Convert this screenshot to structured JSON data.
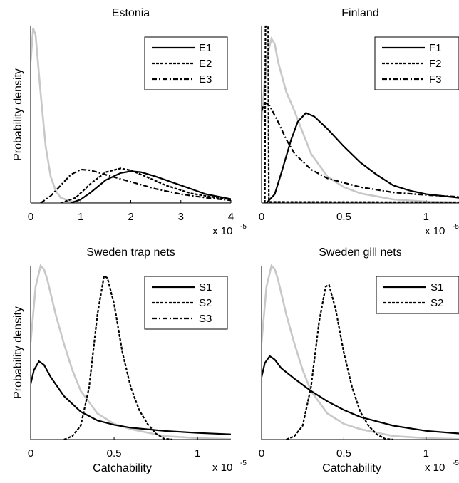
{
  "chart_data": [
    {
      "type": "line",
      "title": "Estonia",
      "xlabel": "",
      "ylabel": "Probability density",
      "xlim": [
        0,
        4
      ],
      "xticks": [
        "0",
        "1",
        "2",
        "3",
        "4"
      ],
      "xtick_values": [
        0,
        1,
        2,
        3,
        4
      ],
      "x_multiplier": {
        "base": "x 10",
        "exp": "-5"
      },
      "ylim": [
        0,
        1
      ],
      "legend": {
        "position": "top-right"
      },
      "prior": {
        "color": "#c8c8c8",
        "points": [
          [
            0,
            0.8
          ],
          [
            0.05,
            0.99
          ],
          [
            0.1,
            0.95
          ],
          [
            0.2,
            0.62
          ],
          [
            0.3,
            0.32
          ],
          [
            0.4,
            0.15
          ],
          [
            0.5,
            0.07
          ],
          [
            0.6,
            0.03
          ],
          [
            0.8,
            0.01
          ],
          [
            1.0,
            0.003
          ],
          [
            1.5,
            0.001
          ],
          [
            4,
            0
          ]
        ]
      },
      "series": [
        {
          "name": "E1",
          "dash": "solid",
          "points": [
            [
              0.8,
              0
            ],
            [
              1.0,
              0.02
            ],
            [
              1.2,
              0.06
            ],
            [
              1.5,
              0.13
            ],
            [
              1.8,
              0.17
            ],
            [
              2.0,
              0.18
            ],
            [
              2.2,
              0.175
            ],
            [
              2.5,
              0.15
            ],
            [
              3.0,
              0.1
            ],
            [
              3.5,
              0.05
            ],
            [
              4.0,
              0.022
            ]
          ]
        },
        {
          "name": "E2",
          "dash": "dashed",
          "points": [
            [
              0.6,
              0
            ],
            [
              0.9,
              0.03
            ],
            [
              1.2,
              0.11
            ],
            [
              1.5,
              0.175
            ],
            [
              1.8,
              0.196
            ],
            [
              2.0,
              0.185
            ],
            [
              2.3,
              0.15
            ],
            [
              2.7,
              0.1
            ],
            [
              3.2,
              0.055
            ],
            [
              3.6,
              0.035
            ],
            [
              4.0,
              0.02
            ]
          ]
        },
        {
          "name": "E3",
          "dash": "dashdot",
          "points": [
            [
              0.2,
              0
            ],
            [
              0.4,
              0.04
            ],
            [
              0.6,
              0.1
            ],
            [
              0.8,
              0.16
            ],
            [
              1.0,
              0.19
            ],
            [
              1.2,
              0.185
            ],
            [
              1.5,
              0.16
            ],
            [
              2.0,
              0.12
            ],
            [
              2.5,
              0.08
            ],
            [
              3.0,
              0.05
            ],
            [
              3.5,
              0.03
            ],
            [
              4.0,
              0.015
            ]
          ]
        }
      ]
    },
    {
      "type": "line",
      "title": "Finland",
      "xlabel": "",
      "ylabel": "",
      "xlim": [
        0,
        1.2
      ],
      "xticks": [
        "0",
        "0.5",
        "1"
      ],
      "xtick_values": [
        0,
        0.5,
        1
      ],
      "x_multiplier": {
        "base": "x 10",
        "exp": "-5"
      },
      "ylim": [
        0,
        1
      ],
      "legend": {
        "position": "top-right"
      },
      "prior": {
        "color": "#c8c8c8",
        "points": [
          [
            0,
            0.46
          ],
          [
            0.03,
            0.82
          ],
          [
            0.06,
            0.93
          ],
          [
            0.08,
            0.9
          ],
          [
            0.1,
            0.8
          ],
          [
            0.15,
            0.63
          ],
          [
            0.2,
            0.52
          ],
          [
            0.25,
            0.4
          ],
          [
            0.3,
            0.28
          ],
          [
            0.4,
            0.15
          ],
          [
            0.5,
            0.09
          ],
          [
            0.6,
            0.055
          ],
          [
            0.8,
            0.02
          ],
          [
            1.0,
            0.008
          ],
          [
            1.2,
            0.003
          ]
        ]
      },
      "series": [
        {
          "name": "F1",
          "dash": "solid",
          "points": [
            [
              0.03,
              0
            ],
            [
              0.08,
              0.05
            ],
            [
              0.12,
              0.17
            ],
            [
              0.18,
              0.36
            ],
            [
              0.22,
              0.46
            ],
            [
              0.27,
              0.51
            ],
            [
              0.32,
              0.49
            ],
            [
              0.4,
              0.42
            ],
            [
              0.5,
              0.32
            ],
            [
              0.6,
              0.23
            ],
            [
              0.7,
              0.16
            ],
            [
              0.8,
              0.1
            ],
            [
              0.9,
              0.07
            ],
            [
              1.0,
              0.05
            ],
            [
              1.1,
              0.04
            ],
            [
              1.2,
              0.03
            ]
          ]
        },
        {
          "name": "F2",
          "dash": "dashed",
          "points": [
            [
              0.02,
              0
            ],
            [
              0.024,
              1
            ],
            [
              0.04,
              1
            ],
            [
              0.044,
              0.01
            ],
            [
              0.05,
              0.006
            ],
            [
              0.06,
              0.006
            ],
            [
              1.2,
              0.004
            ]
          ]
        },
        {
          "name": "F3",
          "dash": "dashdot",
          "points": [
            [
              0,
              0.52
            ],
            [
              0.02,
              0.57
            ],
            [
              0.05,
              0.55
            ],
            [
              0.1,
              0.46
            ],
            [
              0.15,
              0.36
            ],
            [
              0.2,
              0.28
            ],
            [
              0.3,
              0.19
            ],
            [
              0.4,
              0.14
            ],
            [
              0.6,
              0.09
            ],
            [
              0.8,
              0.06
            ],
            [
              1.0,
              0.045
            ],
            [
              1.2,
              0.035
            ]
          ]
        }
      ]
    },
    {
      "type": "line",
      "title": "Sweden trap nets",
      "xlabel": "Catchability",
      "ylabel": "Probability density",
      "xlim": [
        0,
        1.2
      ],
      "xticks": [
        "0",
        "0.5",
        "1"
      ],
      "xtick_values": [
        0,
        0.5,
        1
      ],
      "x_multiplier": {
        "base": "x 10",
        "exp": "-5"
      },
      "ylim": [
        0,
        1
      ],
      "legend": {
        "position": "top-right"
      },
      "prior": {
        "color": "#c8c8c8",
        "points": [
          [
            0,
            0.56
          ],
          [
            0.03,
            0.88
          ],
          [
            0.06,
            1.0
          ],
          [
            0.08,
            0.98
          ],
          [
            0.1,
            0.92
          ],
          [
            0.15,
            0.72
          ],
          [
            0.2,
            0.55
          ],
          [
            0.25,
            0.4
          ],
          [
            0.3,
            0.28
          ],
          [
            0.4,
            0.15
          ],
          [
            0.5,
            0.09
          ],
          [
            0.6,
            0.06
          ],
          [
            0.8,
            0.02
          ],
          [
            1.0,
            0.008
          ],
          [
            1.2,
            0.003
          ]
        ]
      },
      "series": [
        {
          "name": "S1",
          "dash": "solid",
          "points": [
            [
              0,
              0.32
            ],
            [
              0.02,
              0.4
            ],
            [
              0.05,
              0.45
            ],
            [
              0.08,
              0.43
            ],
            [
              0.12,
              0.36
            ],
            [
              0.2,
              0.25
            ],
            [
              0.3,
              0.16
            ],
            [
              0.4,
              0.11
            ],
            [
              0.5,
              0.085
            ],
            [
              0.6,
              0.068
            ],
            [
              0.8,
              0.05
            ],
            [
              1.0,
              0.038
            ],
            [
              1.2,
              0.03
            ]
          ]
        },
        {
          "name": "S2",
          "dash": "dashed",
          "points": [
            [
              0.2,
              0
            ],
            [
              0.25,
              0.02
            ],
            [
              0.3,
              0.08
            ],
            [
              0.35,
              0.3
            ],
            [
              0.4,
              0.72
            ],
            [
              0.44,
              0.94
            ],
            [
              0.46,
              0.93
            ],
            [
              0.5,
              0.78
            ],
            [
              0.55,
              0.5
            ],
            [
              0.6,
              0.3
            ],
            [
              0.65,
              0.17
            ],
            [
              0.7,
              0.09
            ],
            [
              0.75,
              0.035
            ],
            [
              0.8,
              0.005
            ],
            [
              0.85,
              0
            ]
          ]
        },
        {
          "name": "S3",
          "dash": "dashdot",
          "points": []
        }
      ]
    },
    {
      "type": "line",
      "title": "Sweden gill nets",
      "xlabel": "Catchability",
      "ylabel": "",
      "xlim": [
        0,
        1.2
      ],
      "xticks": [
        "0",
        "0.5",
        "1"
      ],
      "xtick_values": [
        0,
        0.5,
        1
      ],
      "x_multiplier": {
        "base": "x 10",
        "exp": "-5"
      },
      "ylim": [
        0,
        1
      ],
      "legend": {
        "position": "top-right"
      },
      "prior": {
        "color": "#c8c8c8",
        "points": [
          [
            0,
            0.56
          ],
          [
            0.03,
            0.88
          ],
          [
            0.06,
            1.0
          ],
          [
            0.08,
            0.98
          ],
          [
            0.1,
            0.92
          ],
          [
            0.15,
            0.72
          ],
          [
            0.2,
            0.55
          ],
          [
            0.25,
            0.4
          ],
          [
            0.3,
            0.28
          ],
          [
            0.4,
            0.15
          ],
          [
            0.5,
            0.09
          ],
          [
            0.6,
            0.06
          ],
          [
            0.8,
            0.02
          ],
          [
            1.0,
            0.008
          ],
          [
            1.2,
            0.003
          ]
        ]
      },
      "series": [
        {
          "name": "S1",
          "dash": "solid",
          "points": [
            [
              0,
              0.36
            ],
            [
              0.02,
              0.44
            ],
            [
              0.05,
              0.48
            ],
            [
              0.08,
              0.46
            ],
            [
              0.12,
              0.41
            ],
            [
              0.2,
              0.35
            ],
            [
              0.3,
              0.28
            ],
            [
              0.4,
              0.22
            ],
            [
              0.5,
              0.17
            ],
            [
              0.6,
              0.13
            ],
            [
              0.8,
              0.08
            ],
            [
              1.0,
              0.05
            ],
            [
              1.2,
              0.035
            ]
          ]
        },
        {
          "name": "S2",
          "dash": "dashed",
          "points": [
            [
              0.15,
              0
            ],
            [
              0.2,
              0.02
            ],
            [
              0.25,
              0.08
            ],
            [
              0.3,
              0.3
            ],
            [
              0.35,
              0.68
            ],
            [
              0.39,
              0.88
            ],
            [
              0.41,
              0.89
            ],
            [
              0.45,
              0.75
            ],
            [
              0.5,
              0.5
            ],
            [
              0.55,
              0.3
            ],
            [
              0.6,
              0.16
            ],
            [
              0.65,
              0.08
            ],
            [
              0.7,
              0.03
            ],
            [
              0.75,
              0.005
            ],
            [
              0.8,
              0
            ]
          ]
        }
      ]
    }
  ]
}
